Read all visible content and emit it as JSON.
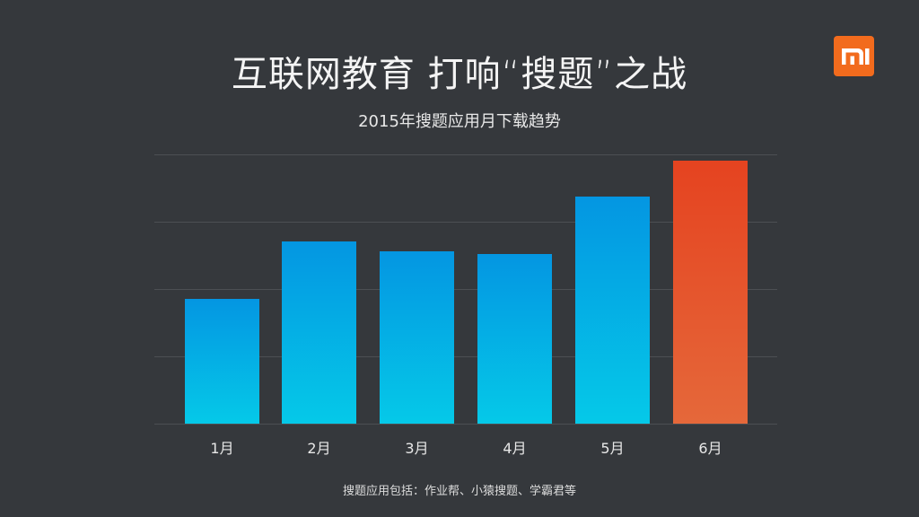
{
  "slide": {
    "title": "互联网教育 打响“搜题”之战",
    "subtitle": "2015年搜题应用月下载趋势",
    "footnote": "搜题应用包括：作业帮、小猿搜题、学霸君等",
    "logo": {
      "icon": "mi-logo-icon",
      "color": "#f26b1d"
    }
  },
  "colors": {
    "background": "#35383c",
    "bar_blue_top": "#0496e2",
    "bar_blue_bottom": "#05c9e8",
    "bar_highlight_top": "#e54320",
    "bar_highlight_bottom": "#e5683a",
    "gridline": "#4c4f53"
  },
  "chart_data": {
    "type": "bar",
    "title": "2015年搜题应用月下载趋势",
    "xlabel": "",
    "ylabel": "",
    "categories": [
      "1月",
      "2月",
      "3月",
      "4月",
      "5月",
      "6月"
    ],
    "values": [
      1.85,
      2.71,
      2.56,
      2.52,
      3.37,
      3.91
    ],
    "value_unit": "relative (gridline units; no y-axis labels shown)",
    "highlight_index": 5,
    "ylim": [
      0,
      4
    ],
    "grid": true,
    "gridlines": [
      0,
      1,
      2,
      3,
      4
    ],
    "legend": null
  }
}
